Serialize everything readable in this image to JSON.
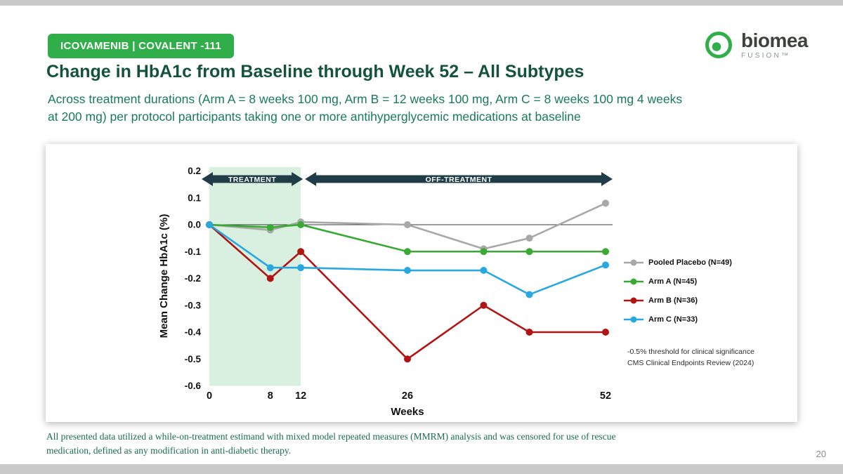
{
  "header": {
    "badge": "ICOVAMENIB | COVALENT -111",
    "logo_name": "biomea",
    "logo_sub": "FUSION™",
    "title": "Change in HbA1c from Baseline through Week 52 – All Subtypes",
    "subtitle_line1": "Across treatment durations (Arm A = 8 weeks 100 mg, Arm B = 12 weeks 100 mg, Arm C = 8 weeks 100 mg 4 weeks",
    "subtitle_line2": "at 200 mg) per protocol participants taking one or more antihyperglycemic medications at baseline"
  },
  "chart_data": {
    "type": "line",
    "title": "",
    "xlabel": "Weeks",
    "ylabel": "Mean Change HbA1c (%)",
    "xlim": [
      0,
      52
    ],
    "ylim": [
      -0.6,
      0.2
    ],
    "x_ticks": [
      0,
      8,
      12,
      26,
      52
    ],
    "y_ticks": [
      0.2,
      0.1,
      0.0,
      -0.1,
      -0.2,
      -0.3,
      -0.4,
      -0.5,
      -0.6
    ],
    "grid": false,
    "legend_position": "right",
    "x": [
      0,
      8,
      12,
      26,
      36,
      42,
      52
    ],
    "series": [
      {
        "name": "Pooled Placebo (N=49)",
        "color": "#a8a8a8",
        "values": [
          0.0,
          -0.02,
          0.01,
          0.0,
          -0.09,
          -0.05,
          0.08
        ]
      },
      {
        "name": "Arm A (N=45)",
        "color": "#3aaa35",
        "values": [
          0.0,
          -0.01,
          0.0,
          -0.1,
          -0.1,
          -0.1,
          -0.1
        ]
      },
      {
        "name": "Arm B (N=36)",
        "color": "#b01513",
        "values": [
          0.0,
          -0.2,
          -0.1,
          -0.5,
          -0.3,
          -0.4,
          -0.4
        ]
      },
      {
        "name": "Arm C (N=33)",
        "color": "#29a8e0",
        "values": [
          0.0,
          -0.16,
          -0.16,
          -0.17,
          -0.17,
          -0.26,
          -0.15
        ]
      }
    ],
    "regions": [
      {
        "from": 0,
        "to": 12,
        "fill": "#d9efe0"
      }
    ],
    "arrows": [
      {
        "label": "TREATMENT",
        "from_week": 0,
        "to_week": 12
      },
      {
        "label": "OFF-TREATMENT",
        "from_week": 12,
        "to_week": 52
      }
    ],
    "arrow_color": "#1f3c47",
    "annotations": {
      "threshold_note_line1": "-0.5% threshold for clinical significance",
      "threshold_note_line2": "CMS Clinical Endpoints Review (2024)"
    }
  },
  "footnote": {
    "line1": "All presented data utilized a while-on-treatment estimand with mixed model repeated measures (MMRM) analysis and was censored for use of rescue",
    "line2": "medication, defined as any modification in anti-diabetic therapy."
  },
  "page_number": "20",
  "colors": {
    "brand_green": "#2fae49",
    "title_green": "#14533a",
    "subtitle_green": "#187a5b",
    "footnote_green": "#1c6b52"
  }
}
